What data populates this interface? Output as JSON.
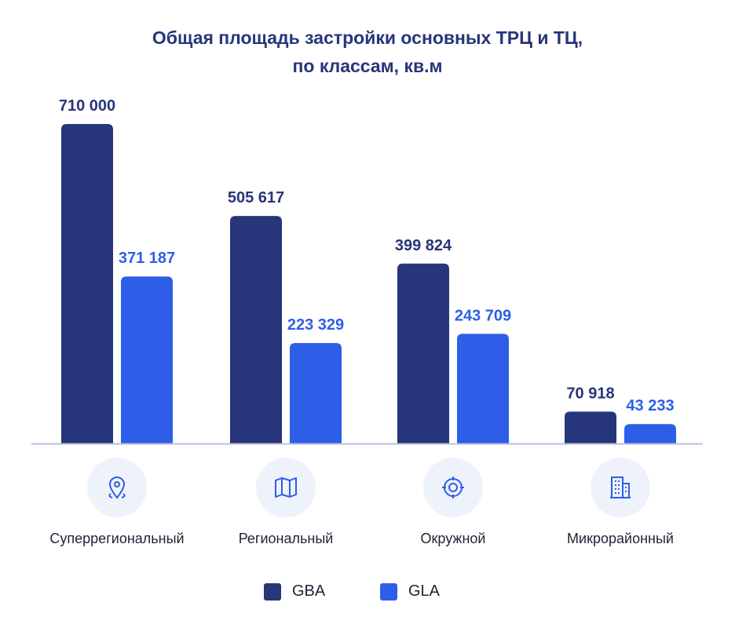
{
  "title_lines": [
    "Общая площадь застройки основных ТРЦ и ТЦ,",
    "по классам, кв.м"
  ],
  "colors": {
    "gba": "#27357a",
    "gla": "#2e5ee8",
    "axis": "#b8bfda",
    "icon": "#2e5ee8"
  },
  "chart_data": {
    "type": "bar",
    "title": "Общая площадь застройки основных ТРЦ и ТЦ, по классам, кв.м",
    "categories": [
      "Суперрегиональный",
      "Региональный",
      "Окружной",
      "Микрорайонный"
    ],
    "series": [
      {
        "name": "GBA",
        "values": [
          710000,
          505617,
          399824,
          70918
        ],
        "labels": [
          "710 000",
          "505 617",
          "399 824",
          "70 918"
        ]
      },
      {
        "name": "GLA",
        "values": [
          371187,
          223329,
          243709,
          43233
        ],
        "labels": [
          "371 187",
          "223 329",
          "243 709",
          "43 233"
        ]
      }
    ],
    "ylim": [
      0,
      710000
    ],
    "grid": false,
    "legend": "bottom-center"
  },
  "categories": [
    {
      "label": "Суперрегиональный",
      "icon": "map-pin-icon"
    },
    {
      "label": "Региональный",
      "icon": "map-icon"
    },
    {
      "label": "Окружной",
      "icon": "target-icon"
    },
    {
      "label": "Микрорайонный",
      "icon": "building-icon"
    }
  ],
  "legend": {
    "gba_label": "GBA",
    "gla_label": "GLA"
  }
}
